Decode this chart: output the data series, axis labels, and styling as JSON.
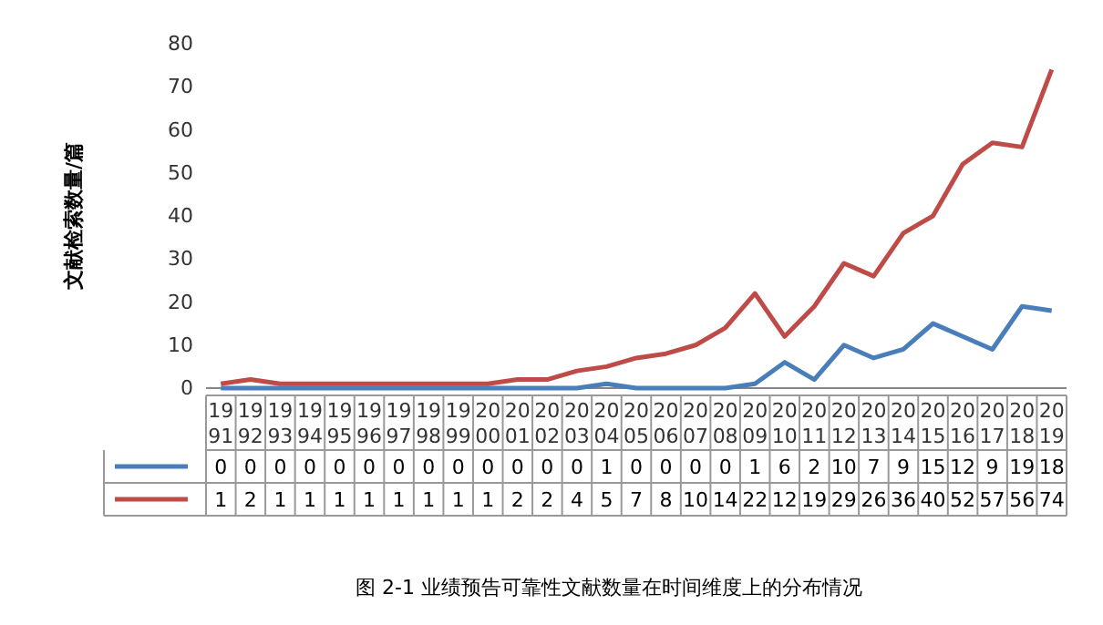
{
  "chart_data": {
    "type": "line",
    "title": "图 2-1   业绩预告可靠性文献数量在时间维度上的分布情况",
    "ylabel": "文献检索数量/篇",
    "categories": [
      "1991",
      "1992",
      "1993",
      "1994",
      "1995",
      "1996",
      "1997",
      "1998",
      "1999",
      "2000",
      "2001",
      "2002",
      "2003",
      "2004",
      "2005",
      "2006",
      "2007",
      "2008",
      "2009",
      "2010",
      "2011",
      "2012",
      "2013",
      "2014",
      "2015",
      "2016",
      "2017",
      "2018",
      "2019"
    ],
    "series": [
      {
        "color": "#4a7ebb",
        "values": [
          0,
          0,
          0,
          0,
          0,
          0,
          0,
          0,
          0,
          0,
          0,
          0,
          0,
          1,
          0,
          0,
          0,
          0,
          1,
          6,
          2,
          10,
          7,
          9,
          15,
          12,
          9,
          19,
          18
        ]
      },
      {
        "color": "#be4b48",
        "values": [
          1,
          2,
          1,
          1,
          1,
          1,
          1,
          1,
          1,
          1,
          2,
          2,
          4,
          5,
          7,
          8,
          10,
          14,
          22,
          12,
          19,
          29,
          26,
          36,
          40,
          52,
          57,
          56,
          74
        ]
      }
    ],
    "ylim": [
      0,
      80
    ],
    "yticks": [
      0,
      10,
      20,
      30,
      40,
      50,
      60,
      70,
      80
    ],
    "data_labels": true,
    "grid": false,
    "marker": "none",
    "line_style": "solid"
  }
}
